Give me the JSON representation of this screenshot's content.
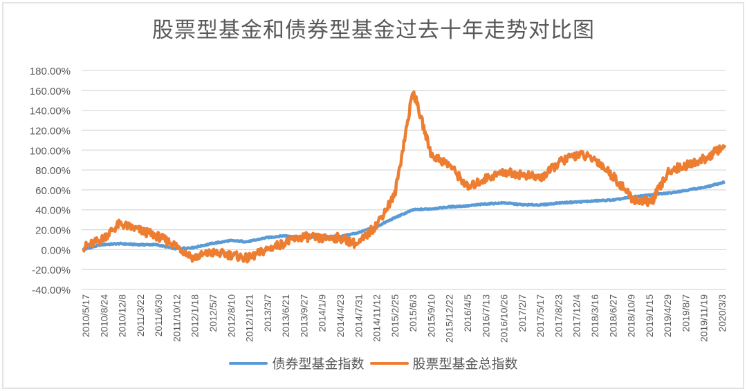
{
  "chart_data": {
    "type": "line",
    "title": "股票型基金和债券型基金过去十年走势对比图",
    "xlabel": "",
    "ylabel": "",
    "ylim": [
      -0.4,
      1.8
    ],
    "grid": true,
    "legend_position": "bottom",
    "y_ticks": [
      "180.00%",
      "160.00%",
      "140.00%",
      "120.00%",
      "100.00%",
      "80.00%",
      "60.00%",
      "40.00%",
      "20.00%",
      "0.00%",
      "-20.00%",
      "-40.00%"
    ],
    "x_ticks": [
      "2010/5/17",
      "2010/8/24",
      "2010/12/8",
      "2011/3/22",
      "2011/6/30",
      "2011/10/12",
      "2012/1/18",
      "2012/5/7",
      "2012/8/10",
      "2012/11/21",
      "2013/3/7",
      "2013/6/21",
      "2013/9/27",
      "2014/1/9",
      "2014/4/23",
      "2014/7/31",
      "2014/11/12",
      "2015/2/25",
      "2015/6/3",
      "2015/9/10",
      "2015/12/22",
      "2016/4/5",
      "2016/7/13",
      "2016/10/26",
      "2017/2/7",
      "2017/5/17",
      "2017/8/23",
      "2017/12/4",
      "2018/3/16",
      "2018/6/27",
      "2018/10/9",
      "2019/1/15",
      "2019/4/29",
      "2019/8/7",
      "2019/11/19",
      "2020/3/3"
    ],
    "x": [
      "2010/5/17",
      "2010/8/24",
      "2010/12/8",
      "2011/3/22",
      "2011/6/30",
      "2011/10/12",
      "2012/1/18",
      "2012/5/7",
      "2012/8/10",
      "2012/11/21",
      "2013/3/7",
      "2013/6/21",
      "2013/9/27",
      "2014/1/9",
      "2014/4/23",
      "2014/7/31",
      "2014/11/12",
      "2015/2/25",
      "2015/6/3",
      "2015/9/10",
      "2015/12/22",
      "2016/4/5",
      "2016/7/13",
      "2016/10/26",
      "2017/2/7",
      "2017/5/17",
      "2017/8/23",
      "2017/12/4",
      "2018/3/16",
      "2018/6/27",
      "2018/10/9",
      "2019/1/15",
      "2019/4/29",
      "2019/8/7",
      "2019/11/19",
      "2020/3/3"
    ],
    "series": [
      {
        "name": "债券型基金指数",
        "color": "#5b9bd5",
        "values": [
          0.0,
          0.05,
          0.06,
          0.05,
          0.05,
          0.01,
          0.02,
          0.06,
          0.09,
          0.08,
          0.12,
          0.14,
          0.12,
          0.13,
          0.13,
          0.17,
          0.23,
          0.32,
          0.4,
          0.41,
          0.43,
          0.44,
          0.46,
          0.47,
          0.45,
          0.45,
          0.47,
          0.48,
          0.49,
          0.5,
          0.53,
          0.55,
          0.57,
          0.6,
          0.63,
          0.68
        ]
      },
      {
        "name": "股票型基金总指数",
        "color": "#ed7d31",
        "values": [
          0.02,
          0.1,
          0.26,
          0.2,
          0.14,
          0.05,
          -0.08,
          -0.03,
          -0.05,
          -0.09,
          0.0,
          0.07,
          0.13,
          0.11,
          0.12,
          0.05,
          0.25,
          0.55,
          1.6,
          0.95,
          0.85,
          0.62,
          0.72,
          0.78,
          0.75,
          0.72,
          0.88,
          0.96,
          0.9,
          0.72,
          0.5,
          0.48,
          0.8,
          0.85,
          0.92,
          1.05
        ]
      }
    ]
  },
  "legend": [
    {
      "label": "债券型基金指数",
      "color": "#5b9bd5"
    },
    {
      "label": "股票型基金总指数",
      "color": "#ed7d31"
    }
  ]
}
